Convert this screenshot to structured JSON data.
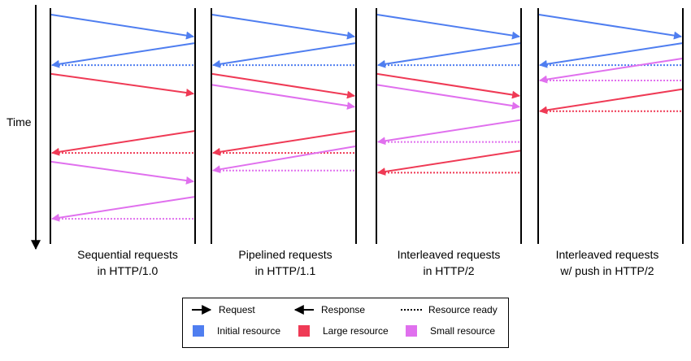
{
  "time_label": "Time",
  "colors": {
    "initial": "#4f7ef0",
    "large": "#ef3a55",
    "small": "#e070ee"
  },
  "panels": [
    {
      "caption": "Sequential requests\nin HTTP/1.0",
      "events": [
        {
          "type": "request",
          "resource": "initial",
          "t0": 0.0,
          "t1": 0.1
        },
        {
          "type": "response",
          "resource": "initial",
          "t0": 0.13,
          "t1": 0.23
        },
        {
          "type": "ready",
          "resource": "initial",
          "t": 0.23
        },
        {
          "type": "request",
          "resource": "large",
          "t0": 0.27,
          "t1": 0.36
        },
        {
          "type": "response",
          "resource": "large",
          "t0": 0.53,
          "t1": 0.63
        },
        {
          "type": "ready",
          "resource": "large",
          "t": 0.63
        },
        {
          "type": "request",
          "resource": "small",
          "t0": 0.67,
          "t1": 0.76
        },
        {
          "type": "response",
          "resource": "small",
          "t0": 0.83,
          "t1": 0.93
        },
        {
          "type": "ready",
          "resource": "small",
          "t": 0.93
        }
      ]
    },
    {
      "caption": "Pipelined requests\nin HTTP/1.1",
      "events": [
        {
          "type": "request",
          "resource": "initial",
          "t0": 0.0,
          "t1": 0.1
        },
        {
          "type": "response",
          "resource": "initial",
          "t0": 0.13,
          "t1": 0.23
        },
        {
          "type": "ready",
          "resource": "initial",
          "t": 0.23
        },
        {
          "type": "request",
          "resource": "large",
          "t0": 0.27,
          "t1": 0.37
        },
        {
          "type": "request",
          "resource": "small",
          "t0": 0.32,
          "t1": 0.42
        },
        {
          "type": "response",
          "resource": "large",
          "t0": 0.53,
          "t1": 0.63
        },
        {
          "type": "ready",
          "resource": "large",
          "t": 0.63
        },
        {
          "type": "response",
          "resource": "small",
          "t0": 0.6,
          "t1": 0.71
        },
        {
          "type": "ready",
          "resource": "small",
          "t": 0.71
        }
      ]
    },
    {
      "caption": "Interleaved requests\nin HTTP/2",
      "events": [
        {
          "type": "request",
          "resource": "initial",
          "t0": 0.0,
          "t1": 0.1
        },
        {
          "type": "response",
          "resource": "initial",
          "t0": 0.13,
          "t1": 0.23
        },
        {
          "type": "ready",
          "resource": "initial",
          "t": 0.23
        },
        {
          "type": "request",
          "resource": "large",
          "t0": 0.27,
          "t1": 0.37
        },
        {
          "type": "request",
          "resource": "small",
          "t0": 0.32,
          "t1": 0.42
        },
        {
          "type": "response",
          "resource": "small",
          "t0": 0.48,
          "t1": 0.58
        },
        {
          "type": "ready",
          "resource": "small",
          "t": 0.58
        },
        {
          "type": "response",
          "resource": "large",
          "t0": 0.62,
          "t1": 0.72
        },
        {
          "type": "ready",
          "resource": "large",
          "t": 0.72
        }
      ]
    },
    {
      "caption": "Interleaved requests\nw/ push in HTTP/2",
      "events": [
        {
          "type": "request",
          "resource": "initial",
          "t0": 0.0,
          "t1": 0.1
        },
        {
          "type": "response",
          "resource": "initial",
          "t0": 0.13,
          "t1": 0.23
        },
        {
          "type": "ready",
          "resource": "initial",
          "t": 0.23
        },
        {
          "type": "response",
          "resource": "small",
          "t0": 0.2,
          "t1": 0.3
        },
        {
          "type": "ready",
          "resource": "small",
          "t": 0.3
        },
        {
          "type": "response",
          "resource": "large",
          "t0": 0.34,
          "t1": 0.44
        },
        {
          "type": "ready",
          "resource": "large",
          "t": 0.44
        }
      ]
    }
  ],
  "legend": {
    "request": "Request",
    "response": "Response",
    "ready": "Resource ready",
    "initial": "Initial resource",
    "large": "Large resource",
    "small": "Small resource"
  }
}
